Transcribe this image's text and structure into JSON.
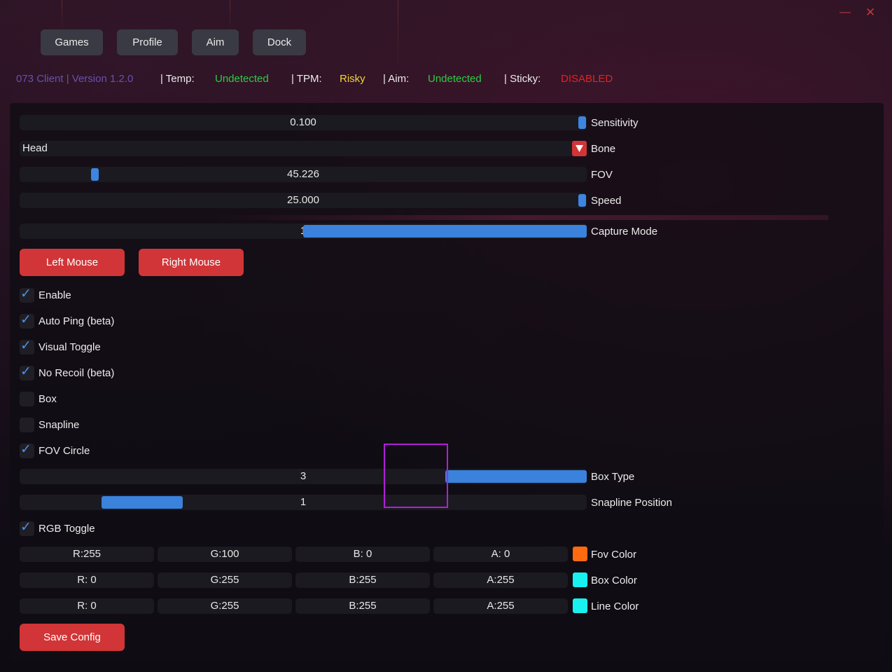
{
  "window": {
    "minimize_symbol": "—",
    "close_symbol": "✕"
  },
  "tabs": [
    "Games",
    "Profile",
    "Aim",
    "Dock"
  ],
  "status": {
    "client": "073 Client | Version 1.2.0",
    "temp_label": "| Temp:",
    "temp_value": "Undetected",
    "tpm_label": "| TPM:",
    "tpm_value": "Risky",
    "aim_label": "| Aim:",
    "aim_value": "Undetected",
    "sticky_label": "| Sticky:",
    "sticky_value": "DISABLED",
    "colors": {
      "client": "#6a4fb0",
      "undetected": "#2ecc40",
      "risky": "#f2d33d",
      "disabled": "#e02424"
    }
  },
  "sliders": {
    "sensitivity": {
      "value": "0.100",
      "label": "Sensitivity",
      "fraction": 1.0
    },
    "bone": {
      "value": "Head",
      "label": "Bone",
      "dropdown_icon": "triangle-down-icon"
    },
    "fov": {
      "value": "45.226",
      "label": "FOV",
      "fraction": 0.13
    },
    "speed": {
      "value": "25.000",
      "label": "Speed",
      "fraction": 1.0
    },
    "capture_mode": {
      "value": "1",
      "label": "Capture Mode",
      "fraction": 0.5
    }
  },
  "mouse_buttons": {
    "left": "Left Mouse",
    "right": "Right Mouse"
  },
  "checkboxes": [
    {
      "label": "Enable",
      "checked": true
    },
    {
      "label": "Auto Ping (beta)",
      "checked": true
    },
    {
      "label": "Visual Toggle",
      "checked": true
    },
    {
      "label": "No Recoil (beta)",
      "checked": true
    },
    {
      "label": "Box",
      "checked": false
    },
    {
      "label": "Snapline",
      "checked": false
    },
    {
      "label": "FOV Circle",
      "checked": true
    }
  ],
  "box_type": {
    "value": "3",
    "label": "Box Type",
    "fraction": 0.75
  },
  "snapline_position": {
    "value": "1",
    "label": "Snapline Position",
    "fraction": 0.25
  },
  "rgb_toggle": {
    "label": "RGB Toggle",
    "checked": true
  },
  "colors": {
    "fov": {
      "r": "R:255",
      "g": "G:100",
      "b": "B:  0",
      "a": "A:  0",
      "label": "Fov Color",
      "swatch": "#ff6a10"
    },
    "box": {
      "r": "R:  0",
      "g": "G:255",
      "b": "B:255",
      "a": "A:255",
      "label": "Box Color",
      "swatch": "#19f0f0"
    },
    "line": {
      "r": "R:  0",
      "g": "G:255",
      "b": "B:255",
      "a": "A:255",
      "label": "Line Color",
      "swatch": "#19f0f0"
    }
  },
  "save_button": "Save Config",
  "accent": {
    "blue": "#3a82dc",
    "red": "#d13537",
    "overlay_box": "#b020d8"
  }
}
